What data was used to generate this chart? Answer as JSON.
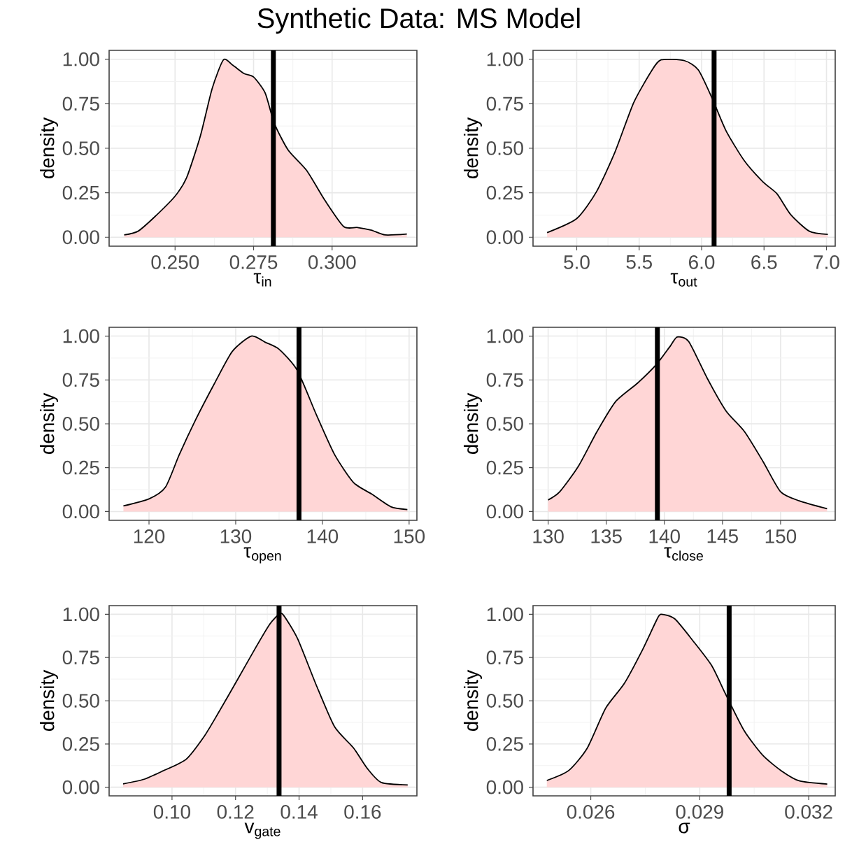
{
  "chart_data": [
    {
      "type": "area",
      "title": "Synthetic Data: MS Model",
      "xlabel": "τ$_{in}$",
      "ylabel": "density",
      "grid": true,
      "xlim": [
        0.229,
        0.327
      ],
      "xticks": [
        {
          "value": 0.25,
          "label": "0.250"
        },
        {
          "value": 0.275,
          "label": "0.275"
        },
        {
          "value": 0.3,
          "label": "0.300"
        }
      ],
      "ylim": [
        -0.05,
        1.05
      ],
      "yticks": [
        {
          "value": 0,
          "label": "0.00"
        },
        {
          "value": 0.25,
          "label": "0.25"
        },
        {
          "value": 0.5,
          "label": "0.50"
        },
        {
          "value": 0.75,
          "label": "0.75"
        },
        {
          "value": 1,
          "label": "1.00"
        }
      ],
      "x": [
        0.2338,
        0.2382,
        0.2434,
        0.25,
        0.2537,
        0.2581,
        0.2618,
        0.2654,
        0.2684,
        0.272,
        0.275,
        0.2787,
        0.2816,
        0.286,
        0.2919,
        0.2978,
        0.3037,
        0.3081,
        0.3125,
        0.3169,
        0.3238
      ],
      "series": [
        {
          "color": "#ffd6d6",
          "values": [
            0.013,
            0.034,
            0.113,
            0.231,
            0.336,
            0.572,
            0.835,
            0.997,
            0.966,
            0.919,
            0.9,
            0.81,
            0.64,
            0.49,
            0.375,
            0.205,
            0.06,
            0.055,
            0.04,
            0.013,
            0.018
          ]
        }
      ],
      "ref_lines": [
        {
          "axis": "x",
          "value": 0.2813,
          "color": "#000000"
        }
      ]
    },
    {
      "type": "area",
      "xlabel": "τ$_{out}$",
      "ylabel": "density",
      "grid": true,
      "xlim": [
        4.65,
        7.07
      ],
      "xticks": [
        {
          "value": 5,
          "label": "5.0"
        },
        {
          "value": 5.5,
          "label": "5.5"
        },
        {
          "value": 6,
          "label": "6.0"
        },
        {
          "value": 6.5,
          "label": "6.5"
        },
        {
          "value": 7,
          "label": "7.0"
        }
      ],
      "ylim": [
        -0.05,
        1.05
      ],
      "yticks": [
        {
          "value": 0,
          "label": "0.00"
        },
        {
          "value": 0.25,
          "label": "0.25"
        },
        {
          "value": 0.5,
          "label": "0.50"
        },
        {
          "value": 0.75,
          "label": "0.75"
        },
        {
          "value": 1,
          "label": "1.00"
        }
      ],
      "x": [
        4.763,
        5.0,
        5.159,
        5.307,
        5.456,
        5.604,
        5.678,
        5.863,
        5.974,
        6.085,
        6.196,
        6.344,
        6.493,
        6.604,
        6.715,
        6.863,
        7.011
      ],
      "series": [
        {
          "color": "#ffd6d6",
          "values": [
            0.026,
            0.105,
            0.257,
            0.48,
            0.756,
            0.94,
            0.997,
            0.992,
            0.94,
            0.78,
            0.598,
            0.428,
            0.31,
            0.244,
            0.126,
            0.034,
            0.016
          ]
        }
      ],
      "ref_lines": [
        {
          "axis": "x",
          "value": 6.1,
          "color": "#000000"
        }
      ]
    },
    {
      "type": "area",
      "xlabel": "τ$_{open}$",
      "ylabel": "density",
      "grid": true,
      "xlim": [
        115.4,
        150.9
      ],
      "xticks": [
        120,
        130,
        140,
        150
      ],
      "ylim": [
        -0.05,
        1.05
      ],
      "yticks": [
        {
          "value": 0,
          "label": "0.00"
        },
        {
          "value": 0.25,
          "label": "0.25"
        },
        {
          "value": 0.5,
          "label": "0.50"
        },
        {
          "value": 0.75,
          "label": "0.75"
        },
        {
          "value": 1,
          "label": "1.00"
        }
      ],
      "x": [
        117.05,
        120,
        121.9,
        123.5,
        125.4,
        127.5,
        129.6,
        131.8,
        133.4,
        135,
        137.1,
        139.3,
        141.4,
        143.6,
        145.7,
        147.9,
        149.8
      ],
      "series": [
        {
          "color": "#ffd6d6",
          "values": [
            0.032,
            0.072,
            0.139,
            0.325,
            0.525,
            0.725,
            0.912,
            1.0,
            0.965,
            0.925,
            0.805,
            0.552,
            0.325,
            0.165,
            0.099,
            0.027,
            0.011
          ]
        }
      ],
      "ref_lines": [
        {
          "axis": "x",
          "value": 137.3,
          "color": "#000000"
        }
      ]
    },
    {
      "type": "area",
      "xlabel": "τ$_{close}$",
      "ylabel": "density",
      "grid": true,
      "xlim": [
        128.7,
        154.7
      ],
      "xticks": [
        130,
        135,
        140,
        145,
        150
      ],
      "ylim": [
        -0.05,
        1.05
      ],
      "yticks": [
        {
          "value": 0,
          "label": "0.00"
        },
        {
          "value": 0.25,
          "label": "0.25"
        },
        {
          "value": 0.5,
          "label": "0.50"
        },
        {
          "value": 0.75,
          "label": "0.75"
        },
        {
          "value": 1,
          "label": "1.00"
        }
      ],
      "x": [
        130,
        131,
        132.6,
        134.2,
        135.8,
        137.7,
        139.3,
        140.5,
        141.1,
        142.1,
        143.7,
        145.3,
        146.9,
        148.5,
        150,
        151.6,
        154
      ],
      "series": [
        {
          "color": "#ffd6d6",
          "values": [
            0.066,
            0.113,
            0.258,
            0.455,
            0.626,
            0.732,
            0.837,
            0.942,
            0.995,
            0.968,
            0.758,
            0.574,
            0.455,
            0.284,
            0.113,
            0.061,
            0.016
          ]
        }
      ],
      "ref_lines": [
        {
          "axis": "x",
          "value": 139.4,
          "color": "#000000"
        }
      ]
    },
    {
      "type": "area",
      "xlabel": "v$_{gate}$",
      "ylabel": "density",
      "grid": true,
      "xlim": [
        0.0802,
        0.1771
      ],
      "xticks": [
        {
          "value": 0.1,
          "label": "0.10"
        },
        {
          "value": 0.12,
          "label": "0.12"
        },
        {
          "value": 0.14,
          "label": "0.14"
        },
        {
          "value": 0.16,
          "label": "0.16"
        }
      ],
      "ylim": [
        -0.05,
        1.05
      ],
      "yticks": [
        {
          "value": 0,
          "label": "0.00"
        },
        {
          "value": 0.25,
          "label": "0.25"
        },
        {
          "value": 0.5,
          "label": "0.50"
        },
        {
          "value": 0.75,
          "label": "0.75"
        },
        {
          "value": 1,
          "label": "1.00"
        }
      ],
      "x": [
        0.0846,
        0.0912,
        0.0971,
        0.1044,
        0.1102,
        0.1146,
        0.1205,
        0.1263,
        0.1307,
        0.1337,
        0.1351,
        0.1395,
        0.1454,
        0.1512,
        0.1571,
        0.1615,
        0.1659,
        0.1742
      ],
      "series": [
        {
          "color": "#ffd6d6",
          "values": [
            0.019,
            0.046,
            0.094,
            0.161,
            0.296,
            0.43,
            0.618,
            0.806,
            0.941,
            1.0,
            0.995,
            0.86,
            0.591,
            0.349,
            0.228,
            0.108,
            0.027,
            0.013
          ]
        }
      ],
      "ref_lines": [
        {
          "axis": "x",
          "value": 0.1337,
          "color": "#000000"
        }
      ]
    },
    {
      "type": "area",
      "xlabel": "σ",
      "ylabel": "density",
      "grid": true,
      "xlim": [
        0.02441,
        0.03273
      ],
      "xticks": [
        {
          "value": 0.026,
          "label": "0.026"
        },
        {
          "value": 0.029,
          "label": "0.029"
        },
        {
          "value": 0.032,
          "label": "0.032"
        }
      ],
      "ylim": [
        -0.05,
        1.05
      ],
      "yticks": [
        {
          "value": 0,
          "label": "0.00"
        },
        {
          "value": 0.25,
          "label": "0.25"
        },
        {
          "value": 0.5,
          "label": "0.50"
        },
        {
          "value": 0.75,
          "label": "0.75"
        },
        {
          "value": 1,
          "label": "1.00"
        }
      ],
      "x": [
        0.02479,
        0.02539,
        0.0259,
        0.02641,
        0.02692,
        0.02742,
        0.0278,
        0.02793,
        0.02831,
        0.02882,
        0.02933,
        0.02972,
        0.03022,
        0.03073,
        0.03124,
        0.03175,
        0.03251
      ],
      "series": [
        {
          "color": "#ffd6d6",
          "values": [
            0.039,
            0.096,
            0.225,
            0.457,
            0.599,
            0.793,
            0.961,
            1.0,
            0.974,
            0.845,
            0.703,
            0.535,
            0.328,
            0.186,
            0.096,
            0.036,
            0.018
          ]
        }
      ],
      "ref_lines": [
        {
          "axis": "x",
          "value": 0.02981,
          "color": "#000000"
        }
      ]
    }
  ]
}
